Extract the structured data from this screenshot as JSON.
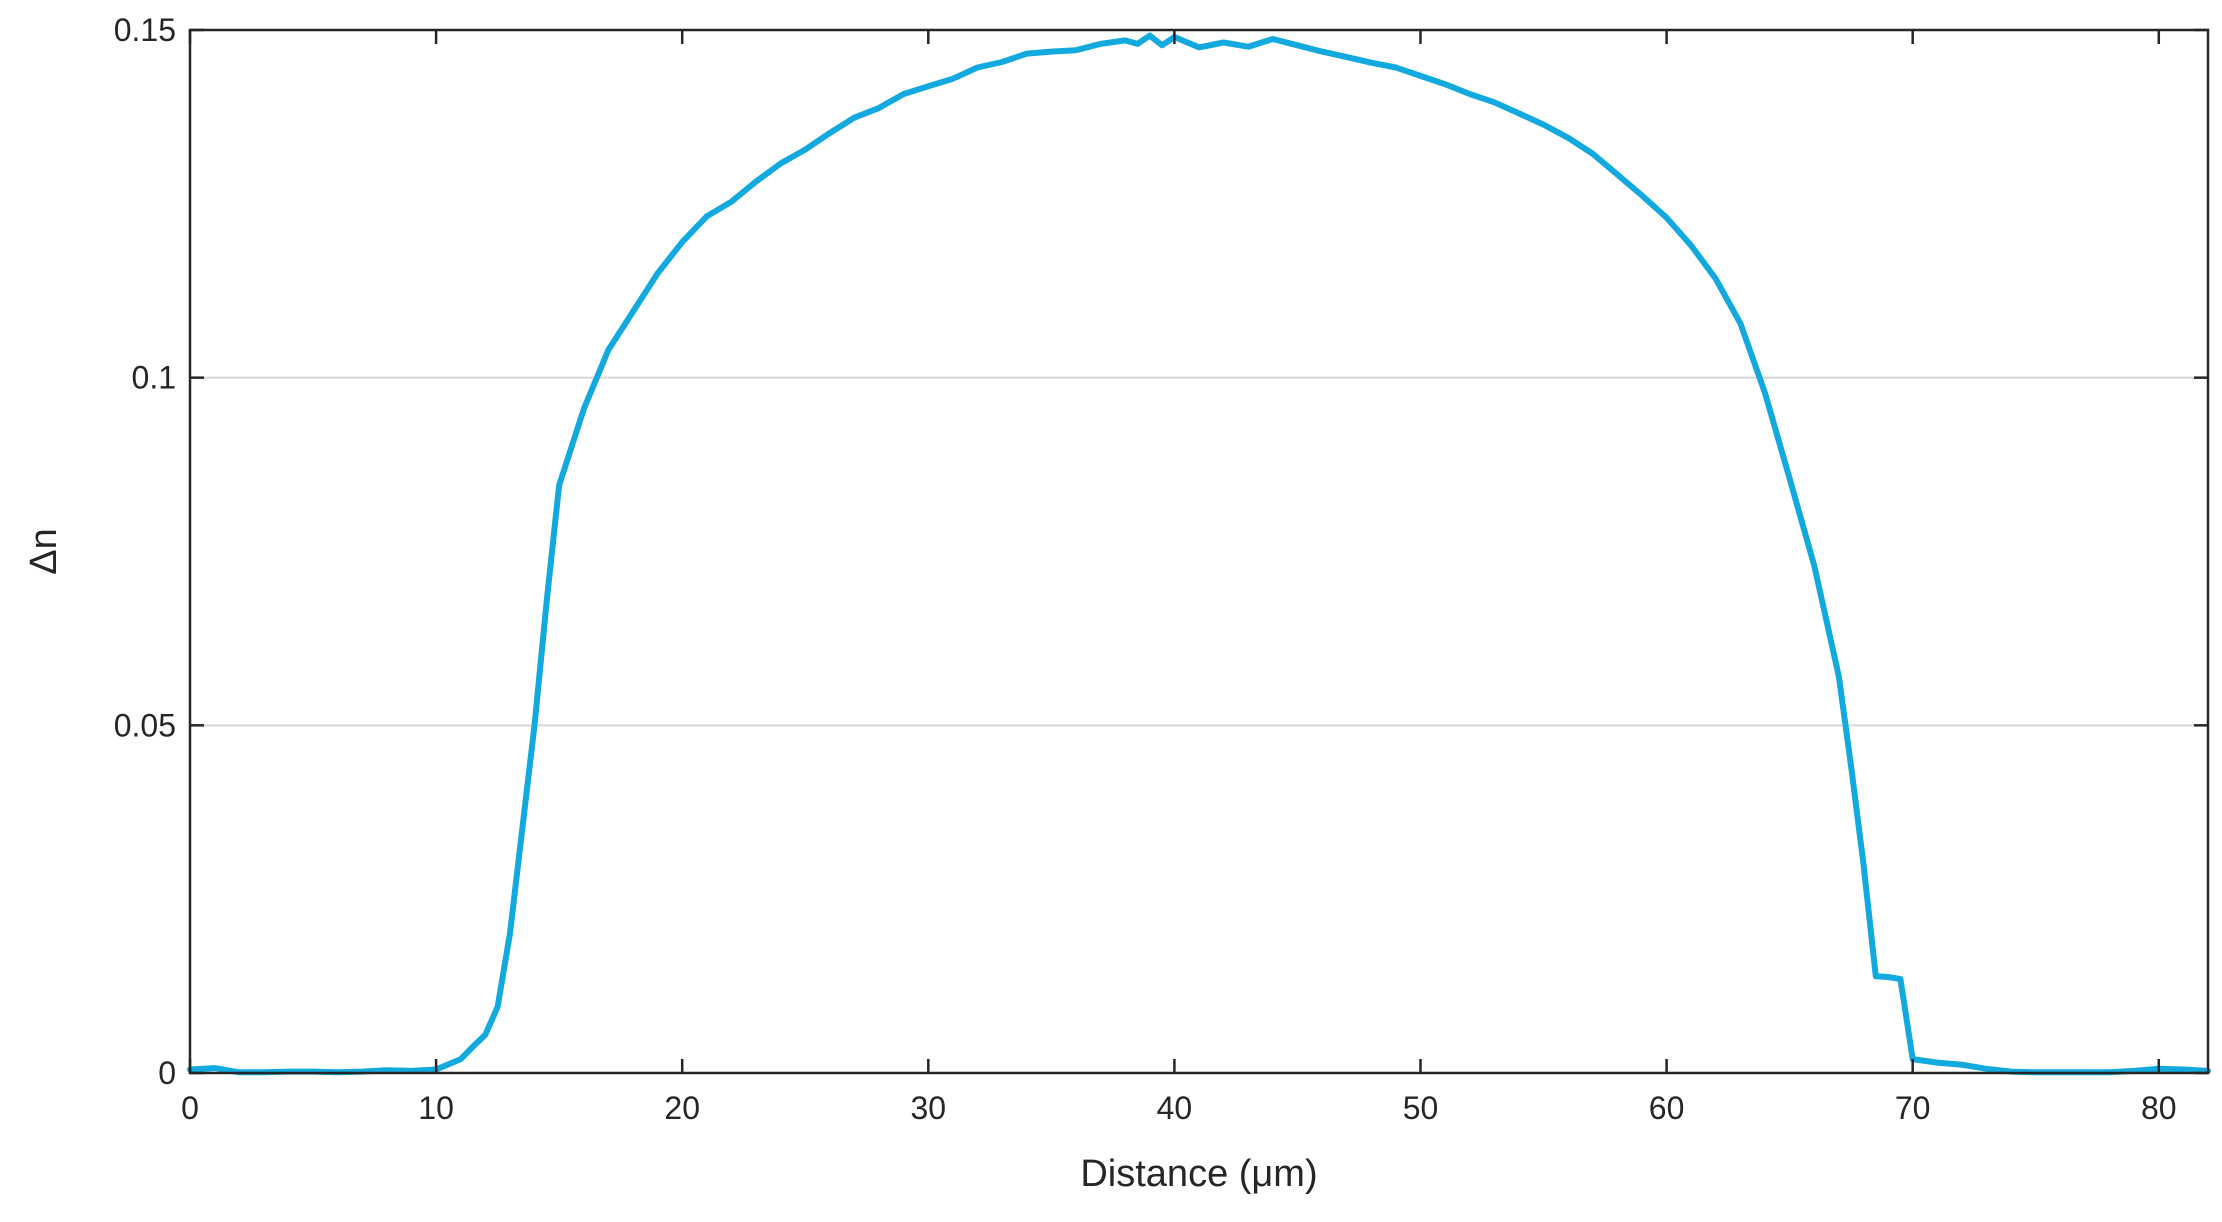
{
  "chart_data": {
    "type": "line",
    "title": "",
    "xlabel": "Distance (μm)",
    "ylabel": "Δn",
    "xlim": [
      0,
      82
    ],
    "ylim": [
      0,
      0.15
    ],
    "x_ticks": [
      0,
      10,
      20,
      30,
      40,
      50,
      60,
      70,
      80
    ],
    "x_tick_labels": [
      "0",
      "10",
      "20",
      "30",
      "40",
      "50",
      "60",
      "70",
      "80"
    ],
    "y_ticks": [
      0,
      0.05,
      0.1,
      0.15
    ],
    "y_tick_labels": [
      "0",
      "0.05",
      "0.1",
      "0.15"
    ],
    "grid": {
      "y": true,
      "x": false
    },
    "colors": {
      "series": "#12a9de",
      "grid": "#d6d6d6",
      "axes": "#262626"
    },
    "series": [
      {
        "x": [
          0,
          1,
          2,
          3,
          4,
          5,
          6,
          7,
          8,
          9,
          10,
          11,
          11.5,
          12,
          12.5,
          13,
          13.5,
          14,
          14.5,
          15,
          16,
          17,
          18,
          19,
          20,
          21,
          22,
          23,
          24,
          25,
          26,
          27,
          28,
          29,
          30,
          31,
          32,
          33,
          34,
          35,
          36,
          37,
          38,
          38.5,
          39,
          39.5,
          40,
          41,
          42,
          43,
          44,
          45,
          46,
          47,
          48,
          49,
          50,
          51,
          52,
          53,
          54,
          55,
          56,
          57,
          58,
          59,
          60,
          61,
          62,
          63,
          64,
          65,
          66,
          67,
          67.5,
          68,
          68.5,
          69,
          69.5,
          70,
          71,
          72,
          73,
          74,
          75,
          76,
          77,
          78,
          79,
          80,
          81,
          82
        ],
        "y": [
          0.0005,
          0.0007,
          0.0001,
          0.0001,
          0.0002,
          0.0002,
          0.0001,
          0.0002,
          0.0004,
          0.0003,
          0.0005,
          0.002,
          0.0038,
          0.0055,
          0.0095,
          0.02,
          0.035,
          0.05,
          0.068,
          0.0845,
          0.0955,
          0.104,
          0.1095,
          0.115,
          0.1195,
          0.1232,
          0.1253,
          0.1282,
          0.1308,
          0.1328,
          0.1352,
          0.1374,
          0.1388,
          0.1408,
          0.1419,
          0.143,
          0.1446,
          0.1454,
          0.1466,
          0.1469,
          0.1471,
          0.148,
          0.1485,
          0.148,
          0.1492,
          0.1478,
          0.149,
          0.1475,
          0.1482,
          0.1476,
          0.1487,
          0.1478,
          0.1469,
          0.1461,
          0.1453,
          0.1446,
          0.1434,
          0.1422,
          0.1408,
          0.1396,
          0.138,
          0.1364,
          0.1345,
          0.1322,
          0.1292,
          0.1262,
          0.123,
          0.119,
          0.1142,
          0.1078,
          0.0978,
          0.0855,
          0.073,
          0.057,
          0.044,
          0.03,
          0.0139,
          0.0138,
          0.0135,
          0.002,
          0.0015,
          0.0012,
          0.0006,
          0.0002,
          0.0001,
          0.0001,
          0.0001,
          0.0001,
          0.0003,
          0.0006,
          0.0005,
          0.0003
        ]
      }
    ]
  }
}
